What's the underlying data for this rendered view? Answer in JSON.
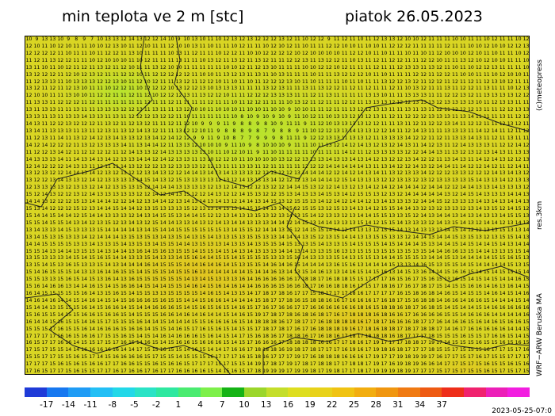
{
  "header": {
    "title": "min teplota ve 2 m [stc]",
    "date": "piatok 26.05.2023"
  },
  "side_labels": {
    "copyright": "(c)meteopress",
    "resolution": "res.3km",
    "model": "WRF−ARW Beruska MA"
  },
  "timestamp": "2023-05-25-07:0",
  "colorbar": {
    "colors": [
      "#1f3bd8",
      "#1778f0",
      "#1f9cf5",
      "#23bff5",
      "#22d8e8",
      "#2ae3c6",
      "#2ee8a0",
      "#4aeb70",
      "#7df04a",
      "#15b315",
      "#9bd62a",
      "#c4de2a",
      "#dede1f",
      "#e8d21a",
      "#f0c312",
      "#f2ad0f",
      "#f0960f",
      "#f07a12",
      "#ee5a12",
      "#ee2e1a",
      "#f0226e",
      "#ec1fb8",
      "#f21ee0"
    ],
    "ticks": [
      "-17",
      "-14",
      "-11",
      "-8",
      "-5",
      "-2",
      "1",
      "4",
      "7",
      "10",
      "13",
      "16",
      "19",
      "22",
      "25",
      "28",
      "31",
      "34",
      "37"
    ]
  },
  "map": {
    "rows": 48,
    "cols": 64,
    "background_color": "#d8d625",
    "cool_color": "#a8e22c",
    "warm_color": "#e8b81a",
    "sample_row_0": "10 9 13 13 10 9 8 9 7 10 13 13 12 14 13 12 12 14 10 9 10 13 10 11 10 12 13 12 13 12 12 12 13 12 11 10 12 12 9 11 12 11 10 11 12 13 13 12 10 10 12 11"
  }
}
